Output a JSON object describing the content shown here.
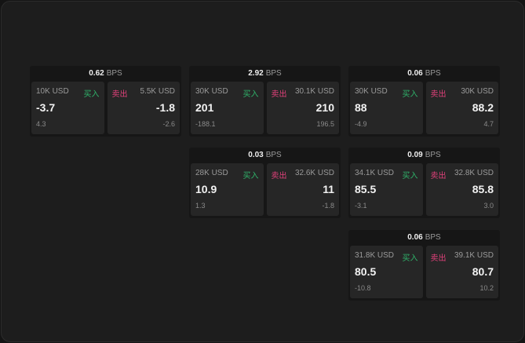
{
  "labels": {
    "unit": "BPS",
    "buy": "买入",
    "sell": "卖出"
  },
  "colors": {
    "buy": "#2fb36a",
    "sell": "#e0417a"
  },
  "cards": [
    {
      "spread": "0.62",
      "bid_size": "10K USD",
      "bid": "-3.7",
      "bid_chg": "4.3",
      "ask_size": "5.5K USD",
      "ask": "-1.8",
      "ask_chg": "-2.6"
    },
    {
      "spread": "2.92",
      "bid_size": "30K USD",
      "bid": "201",
      "bid_chg": "-188.1",
      "ask_size": "30.1K USD",
      "ask": "210",
      "ask_chg": "196.5"
    },
    {
      "spread": "0.06",
      "bid_size": "30K USD",
      "bid": "88",
      "bid_chg": "-4.9",
      "ask_size": "30K USD",
      "ask": "88.2",
      "ask_chg": "4.7"
    },
    {
      "spread": "0.03",
      "bid_size": "28K USD",
      "bid": "10.9",
      "bid_chg": "1.3",
      "ask_size": "32.6K USD",
      "ask": "11",
      "ask_chg": "-1.8"
    },
    {
      "spread": "0.09",
      "bid_size": "34.1K USD",
      "bid": "85.5",
      "bid_chg": "-3.1",
      "ask_size": "32.8K USD",
      "ask": "85.8",
      "ask_chg": "3.0"
    },
    {
      "spread": "0.06",
      "bid_size": "31.8K USD",
      "bid": "80.5",
      "bid_chg": "-10.8",
      "ask_size": "39.1K USD",
      "ask": "80.7",
      "ask_chg": "10.2"
    }
  ]
}
